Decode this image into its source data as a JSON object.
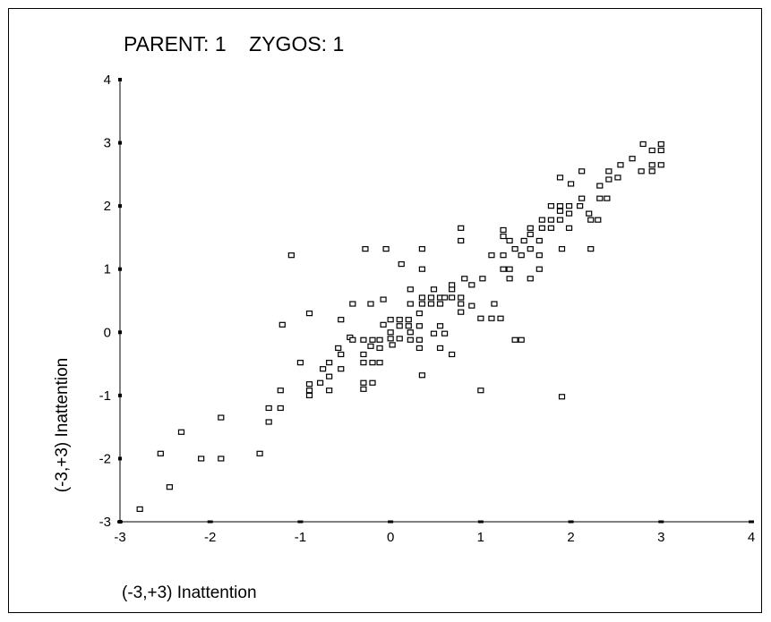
{
  "chart_data": {
    "type": "scatter",
    "title": "PARENT: 1    ZYGOS: 1",
    "xlabel": "(-3,+3) Inattention",
    "ylabel": "(-3,+3) Inattention",
    "xlim": [
      -3,
      4
    ],
    "ylim": [
      -3,
      4
    ],
    "xticks": [
      "-3",
      "-2",
      "-1",
      "0",
      "1",
      "2",
      "3",
      "4"
    ],
    "yticks": [
      "-3",
      "-2",
      "-1",
      "0",
      "1",
      "2",
      "3",
      "4"
    ],
    "grid": false,
    "legend": "none",
    "marker": "open-square",
    "points": [
      [
        -2.78,
        -2.8
      ],
      [
        -2.55,
        -1.92
      ],
      [
        -2.45,
        -2.45
      ],
      [
        -2.32,
        -1.58
      ],
      [
        -2.1,
        -2.0
      ],
      [
        -1.88,
        -1.35
      ],
      [
        -1.88,
        -2.0
      ],
      [
        -1.45,
        -1.92
      ],
      [
        -1.35,
        -1.2
      ],
      [
        -1.35,
        -1.42
      ],
      [
        -1.22,
        -1.2
      ],
      [
        -1.22,
        -0.92
      ],
      [
        -1.2,
        0.12
      ],
      [
        -1.1,
        1.22
      ],
      [
        -1.0,
        -0.48
      ],
      [
        -0.9,
        -0.82
      ],
      [
        -0.9,
        -0.92
      ],
      [
        -0.9,
        -1.0
      ],
      [
        -0.9,
        0.3
      ],
      [
        -0.78,
        -0.8
      ],
      [
        -0.75,
        -0.58
      ],
      [
        -0.68,
        -0.48
      ],
      [
        -0.68,
        -0.7
      ],
      [
        -0.68,
        -0.92
      ],
      [
        -0.58,
        -0.25
      ],
      [
        -0.55,
        -0.35
      ],
      [
        -0.55,
        -0.58
      ],
      [
        -0.55,
        0.2
      ],
      [
        -0.45,
        -0.08
      ],
      [
        -0.42,
        0.45
      ],
      [
        -0.42,
        -0.12
      ],
      [
        -0.3,
        -0.12
      ],
      [
        -0.3,
        -0.35
      ],
      [
        -0.3,
        -0.48
      ],
      [
        -0.3,
        -0.8
      ],
      [
        -0.3,
        -0.9
      ],
      [
        -0.28,
        1.32
      ],
      [
        -0.22,
        -0.22
      ],
      [
        -0.22,
        0.45
      ],
      [
        -0.2,
        -0.12
      ],
      [
        -0.2,
        -0.48
      ],
      [
        -0.2,
        -0.8
      ],
      [
        -0.12,
        -0.12
      ],
      [
        -0.12,
        -0.25
      ],
      [
        -0.12,
        -0.48
      ],
      [
        -0.08,
        0.52
      ],
      [
        -0.05,
        1.32
      ],
      [
        -0.08,
        0.12
      ],
      [
        0.0,
        -0.1
      ],
      [
        0.0,
        0.2
      ],
      [
        0.0,
        -0.0
      ],
      [
        0.02,
        -0.2
      ],
      [
        0.1,
        -0.1
      ],
      [
        0.1,
        0.1
      ],
      [
        0.1,
        0.2
      ],
      [
        0.12,
        1.08
      ],
      [
        0.2,
        0.1
      ],
      [
        0.2,
        0.2
      ],
      [
        0.22,
        0.45
      ],
      [
        0.22,
        0.68
      ],
      [
        0.22,
        -0.12
      ],
      [
        0.22,
        -0.0
      ],
      [
        0.32,
        -0.12
      ],
      [
        0.32,
        -0.25
      ],
      [
        0.32,
        0.1
      ],
      [
        0.32,
        0.3
      ],
      [
        0.35,
        1.32
      ],
      [
        0.35,
        1.0
      ],
      [
        0.35,
        0.45
      ],
      [
        0.35,
        0.55
      ],
      [
        0.35,
        -0.68
      ],
      [
        0.45,
        0.45
      ],
      [
        0.45,
        0.55
      ],
      [
        0.48,
        0.68
      ],
      [
        0.48,
        -0.02
      ],
      [
        0.55,
        0.45
      ],
      [
        0.55,
        0.55
      ],
      [
        0.55,
        0.1
      ],
      [
        0.55,
        -0.25
      ],
      [
        0.6,
        0.55
      ],
      [
        0.6,
        -0.02
      ],
      [
        0.68,
        0.68
      ],
      [
        0.68,
        0.75
      ],
      [
        0.68,
        0.55
      ],
      [
        0.68,
        -0.35
      ],
      [
        0.78,
        0.45
      ],
      [
        0.78,
        0.55
      ],
      [
        0.78,
        0.32
      ],
      [
        0.78,
        1.45
      ],
      [
        0.78,
        1.65
      ],
      [
        0.82,
        0.85
      ],
      [
        0.9,
        0.42
      ],
      [
        0.9,
        0.75
      ],
      [
        1.0,
        0.22
      ],
      [
        1.0,
        -0.92
      ],
      [
        1.02,
        0.85
      ],
      [
        1.12,
        0.22
      ],
      [
        1.12,
        1.22
      ],
      [
        1.15,
        0.45
      ],
      [
        1.22,
        0.22
      ],
      [
        1.25,
        1.0
      ],
      [
        1.25,
        1.22
      ],
      [
        1.25,
        1.52
      ],
      [
        1.25,
        1.62
      ],
      [
        1.32,
        1.45
      ],
      [
        1.32,
        1.0
      ],
      [
        1.32,
        0.85
      ],
      [
        1.38,
        1.32
      ],
      [
        1.38,
        -0.12
      ],
      [
        1.45,
        1.22
      ],
      [
        1.45,
        -0.12
      ],
      [
        1.48,
        1.45
      ],
      [
        1.55,
        0.85
      ],
      [
        1.55,
        1.32
      ],
      [
        1.55,
        1.55
      ],
      [
        1.55,
        1.65
      ],
      [
        1.65,
        1.0
      ],
      [
        1.65,
        1.22
      ],
      [
        1.65,
        1.45
      ],
      [
        1.68,
        1.65
      ],
      [
        1.68,
        1.78
      ],
      [
        1.78,
        1.65
      ],
      [
        1.78,
        1.78
      ],
      [
        1.78,
        2.0
      ],
      [
        1.88,
        1.78
      ],
      [
        1.88,
        1.92
      ],
      [
        1.88,
        2.0
      ],
      [
        1.88,
        2.45
      ],
      [
        1.9,
        1.32
      ],
      [
        1.9,
        -1.02
      ],
      [
        1.98,
        1.65
      ],
      [
        1.98,
        2.0
      ],
      [
        1.98,
        1.88
      ],
      [
        2.0,
        2.35
      ],
      [
        2.1,
        2.0
      ],
      [
        2.12,
        2.12
      ],
      [
        2.12,
        2.55
      ],
      [
        2.2,
        1.88
      ],
      [
        2.22,
        1.78
      ],
      [
        2.22,
        1.32
      ],
      [
        2.3,
        1.78
      ],
      [
        2.32,
        2.12
      ],
      [
        2.32,
        2.32
      ],
      [
        2.4,
        2.12
      ],
      [
        2.42,
        2.42
      ],
      [
        2.42,
        2.55
      ],
      [
        2.52,
        2.45
      ],
      [
        2.55,
        2.65
      ],
      [
        2.68,
        2.75
      ],
      [
        2.78,
        2.55
      ],
      [
        2.8,
        2.98
      ],
      [
        2.9,
        2.55
      ],
      [
        2.9,
        2.65
      ],
      [
        2.9,
        2.88
      ],
      [
        3.0,
        2.65
      ],
      [
        3.0,
        2.88
      ],
      [
        3.0,
        2.98
      ]
    ]
  }
}
